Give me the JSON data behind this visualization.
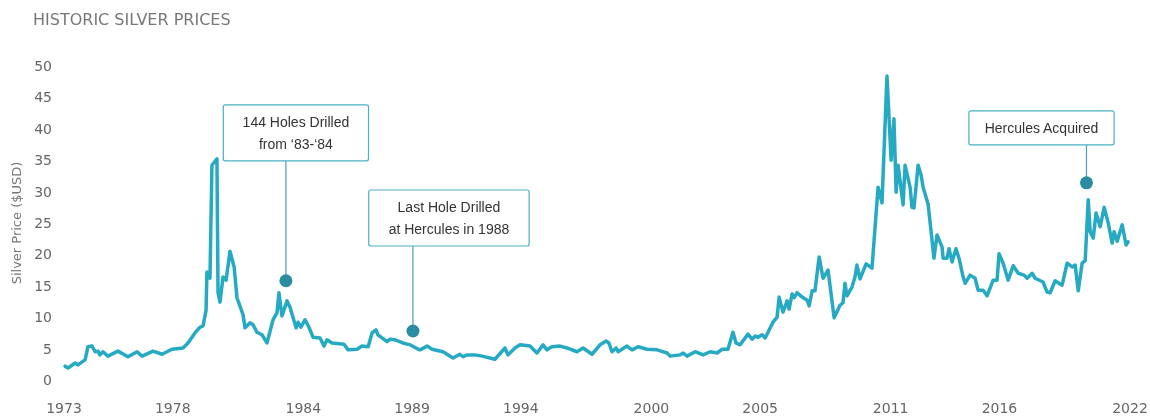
{
  "chart_data": {
    "type": "line",
    "title": "HISTORIC SILVER PRICES",
    "ylabel": "Silver Price ($USD)",
    "xlim": [
      1973,
      2022
    ],
    "xticks": [
      1973,
      1978,
      1984,
      1989,
      1994,
      2000,
      2005,
      2011,
      2016,
      2022
    ],
    "ylim": [
      0,
      50
    ],
    "yticks": [
      0,
      5,
      10,
      15,
      20,
      25,
      30,
      35,
      40,
      45,
      50
    ],
    "grid": false,
    "series": [
      {
        "color": "#26a9c2",
        "x": [
          1973.05,
          1973.18,
          1973.51,
          1973.64,
          1973.97,
          1974.1,
          1974.29,
          1974.43,
          1974.56,
          1974.65,
          1974.79,
          1975.02,
          1975.48,
          1975.94,
          1976.36,
          1976.59,
          1977.09,
          1977.51,
          1977.96,
          1978.47,
          1978.7,
          1979.02,
          1979.25,
          1979.39,
          1979.53,
          1979.57,
          1979.71,
          1979.8,
          1980.03,
          1980.08,
          1980.17,
          1980.31,
          1980.45,
          1980.63,
          1980.82,
          1980.95,
          1981.23,
          1981.32,
          1981.55,
          1981.69,
          1981.87,
          1982.1,
          1982.33,
          1982.61,
          1982.79,
          1982.88,
          1983.02,
          1983.25,
          1983.39,
          1983.67,
          1983.76,
          1983.89,
          1984.08,
          1984.26,
          1984.45,
          1984.77,
          1984.95,
          1985.09,
          1985.32,
          1985.87,
          1986.06,
          1986.47,
          1986.7,
          1986.98,
          1987.16,
          1987.34,
          1987.43,
          1987.85,
          1987.99,
          1988.22,
          1988.58,
          1988.91,
          1989.28,
          1989.37,
          1989.69,
          1989.92,
          1990.42,
          1990.88,
          1991.2,
          1991.34,
          1991.53,
          1991.89,
          1992.22,
          1992.81,
          1993.27,
          1993.41,
          1993.73,
          1993.96,
          1994.42,
          1994.74,
          1995.02,
          1995.2,
          1995.43,
          1995.8,
          1996.12,
          1996.58,
          1996.86,
          1997.27,
          1997.64,
          1997.92,
          1998.05,
          1998.19,
          1998.38,
          1998.47,
          1998.88,
          1999.11,
          1999.39,
          1999.8,
          2000.26,
          2000.72,
          2000.86,
          2001.32,
          2001.46,
          2001.64,
          2002.01,
          2002.38,
          2002.7,
          2003.02,
          2003.25,
          2003.52,
          2003.75,
          2003.89,
          2004.08,
          2004.44,
          2004.63,
          2004.77,
          2004.9,
          2005.09,
          2005.23,
          2005.59,
          2005.78,
          2005.87,
          2006.05,
          2006.24,
          2006.33,
          2006.47,
          2006.56,
          2006.7,
          2006.93,
          2007.16,
          2007.25,
          2007.39,
          2007.52,
          2007.71,
          2007.89,
          2008.12,
          2008.4,
          2008.67,
          2008.81,
          2008.9,
          2008.99,
          2009.22,
          2009.36,
          2009.45,
          2009.59,
          2009.87,
          2010.14,
          2010.42,
          2010.6,
          2010.83,
          2011.02,
          2011.15,
          2011.25,
          2011.34,
          2011.57,
          2011.66,
          2011.89,
          2011.98,
          2012.07,
          2012.26,
          2012.4,
          2012.49,
          2012.72,
          2012.99,
          2013.13,
          2013.36,
          2013.41,
          2013.59,
          2013.68,
          2013.82,
          2014,
          2014.14,
          2014.33,
          2014.42,
          2014.65,
          2014.88,
          2015.02,
          2015.25,
          2015.43,
          2015.71,
          2015.89,
          2015.98,
          2016.17,
          2016.4,
          2016.63,
          2016.86,
          2017.13,
          2017.27,
          2017.5,
          2017.64,
          2018,
          2018.19,
          2018.33,
          2018.56,
          2018.88,
          2019.11,
          2019.34,
          2019.48,
          2019.62,
          2019.8,
          2019.94,
          2020.08,
          2020.17,
          2020.31,
          2020.44,
          2020.63,
          2020.81,
          2021,
          2021.18,
          2021.27,
          2021.41,
          2021.64,
          2021.82,
          2021.91
        ],
        "values": [
          2.2,
          1.9,
          2.7,
          2.4,
          3.2,
          5.3,
          5.4,
          4.5,
          4.6,
          4.0,
          4.5,
          3.8,
          4.6,
          3.7,
          4.5,
          3.8,
          4.6,
          4.1,
          4.9,
          5.1,
          5.9,
          7.5,
          8.4,
          8.6,
          11.1,
          17.2,
          16.2,
          34.2,
          35.2,
          13.9,
          12.4,
          16.4,
          15.9,
          20.5,
          18.0,
          13.1,
          10.4,
          8.3,
          9.1,
          8.8,
          7.6,
          7.2,
          5.9,
          9.6,
          10.7,
          13.9,
          10.2,
          12.6,
          11.6,
          8.3,
          9.2,
          8.4,
          9.6,
          8.4,
          6.8,
          6.7,
          5.4,
          6.4,
          5.9,
          5.7,
          4.8,
          4.9,
          5.4,
          5.3,
          7.5,
          8.0,
          7.2,
          6.1,
          6.5,
          6.4,
          5.9,
          5.6,
          4.9,
          4.8,
          5.4,
          4.9,
          4.5,
          3.5,
          4.1,
          3.7,
          4.0,
          4.0,
          3.8,
          3.3,
          5.1,
          4.0,
          5.1,
          5.6,
          5.4,
          4.3,
          5.6,
          4.8,
          5.3,
          5.4,
          5.1,
          4.5,
          5.1,
          4.1,
          5.6,
          6.2,
          5.9,
          4.5,
          5.1,
          4.5,
          5.4,
          4.8,
          5.3,
          4.9,
          4.8,
          4.3,
          3.8,
          4.0,
          4.3,
          3.8,
          4.5,
          4.0,
          4.5,
          4.3,
          4.9,
          4.9,
          7.6,
          5.9,
          5.6,
          7.3,
          6.5,
          7.0,
          6.8,
          7.2,
          6.7,
          9.2,
          10.0,
          13.2,
          10.8,
          12.6,
          11.3,
          13.7,
          13.1,
          13.9,
          13.2,
          12.7,
          11.8,
          14.2,
          14.2,
          19.6,
          16.2,
          17.5,
          9.9,
          11.9,
          12.3,
          15.4,
          13.4,
          14.8,
          16.4,
          18.3,
          16.1,
          18.5,
          17.8,
          30.7,
          28.2,
          48.4,
          35.0,
          41.6,
          29.9,
          34.2,
          27.9,
          34.2,
          30.7,
          27.5,
          27.4,
          34.2,
          32.6,
          30.7,
          28.0,
          19.4,
          23.1,
          21.2,
          19.4,
          19.4,
          20.9,
          18.8,
          20.9,
          19.4,
          16.4,
          15.4,
          16.7,
          16.2,
          14.3,
          14.3,
          13.4,
          15.9,
          15.9,
          20.1,
          18.6,
          15.9,
          18.2,
          17.0,
          16.7,
          16.2,
          17.0,
          16.2,
          15.6,
          14.0,
          13.9,
          15.8,
          15.1,
          18.6,
          18.0,
          18.3,
          14.2,
          18.6,
          19.0,
          28.7,
          23.6,
          22.6,
          26.6,
          24.4,
          27.5,
          25.0,
          21.8,
          23.6,
          22.1,
          24.7,
          21.5,
          22.0
        ]
      }
    ],
    "annotations": [
      {
        "text": "144 Holes Drilled\nfrom ‘83-‘84",
        "x": 1983.2,
        "y": 15.8
      },
      {
        "text": "Last Hole Drilled\nat Hercules in 1988",
        "x": 1989.04,
        "y": 7.8
      },
      {
        "text": "Hercules Acquired",
        "x": 2020.0,
        "y": 31.4
      }
    ]
  }
}
